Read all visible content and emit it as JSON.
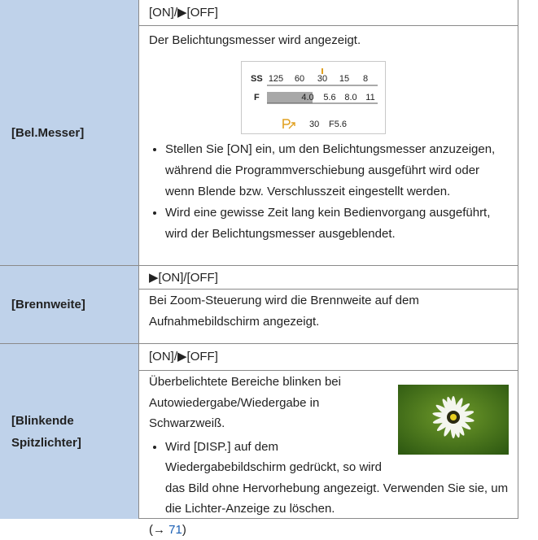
{
  "rows": [
    {
      "label": "[Bel.Messer]",
      "options": "[ON]/▶[OFF]",
      "description": "Der Belichtungsmesser wird angezeigt.",
      "meter": {
        "ss_label": "SS",
        "ss_values": [
          "125",
          "60",
          "30",
          "15",
          "8"
        ],
        "f_label": "F",
        "f_values": [
          "4.0",
          "5.6",
          "8.0",
          "11"
        ],
        "status": [
          "30",
          "F5.6"
        ]
      },
      "bullets": [
        "Stellen Sie [ON] ein, um den Belichtungsmesser anzuzeigen, während die Programmverschiebung ausgeführt wird oder wenn Blende bzw. Verschlusszeit eingestellt werden.",
        "Wird eine gewisse Zeit lang kein Bedienvorgang ausgeführt, wird der Belichtungsmesser ausgeblendet."
      ]
    },
    {
      "label": "[Brennweite]",
      "options": "▶[ON]/[OFF]",
      "description": "Bei Zoom-Steuerung wird die Brennweite auf dem Aufnahmebildschirm angezeigt."
    },
    {
      "label": "[Blinkende Spitzlichter]",
      "options": "[ON]/▶[OFF]",
      "description": "Überbelichtete Bereiche blinken bei Autowiedergabe/Wiedergabe in Schwarzweiß.",
      "bullets": [
        "Wird [DISP.] auf dem Wiedergabebildschirm gedrückt, so wird das Bild ohne Hervorhebung angezeigt. Verwenden Sie sie, um die Lichter-Anzeige zu löschen."
      ],
      "ref": {
        "open": "(→ ",
        "page": "71",
        "close": ")"
      }
    }
  ]
}
